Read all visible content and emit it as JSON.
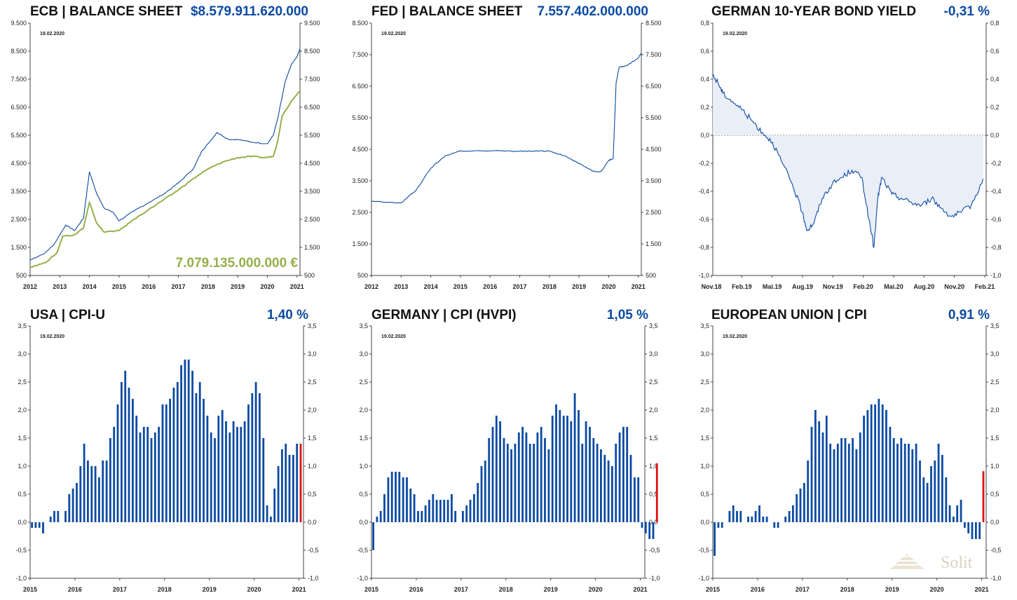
{
  "colors": {
    "blue": "#0b4aa2",
    "green": "#96b04a",
    "red": "#e01010",
    "fill": "#e9eef7"
  },
  "logo": {
    "text": "Solit"
  },
  "charts": [
    {
      "id": "ecb",
      "title": "ECB | BALANCE SHEET",
      "value": "$8.579.911.620.000",
      "date": "19.02.2020",
      "secondary_value": "7.079.135.000.000 €",
      "yticks": [
        "9.500",
        "8.500",
        "7.500",
        "6.500",
        "5.500",
        "4.500",
        "3.500",
        "2.500",
        "1.500",
        "500"
      ],
      "xticks": [
        "2012",
        "2013",
        "2014",
        "2015",
        "2016",
        "2017",
        "2018",
        "2019",
        "2020",
        "2021"
      ]
    },
    {
      "id": "fed",
      "title": "FED | BALANCE SHEET",
      "value": "7.557.402.000.000",
      "date": "19.02.2020",
      "yticks": [
        "8.500",
        "7.500",
        "6.500",
        "5.500",
        "4.500",
        "3.500",
        "2.500",
        "1.500",
        "500"
      ],
      "xticks": [
        "2012",
        "2013",
        "2014",
        "2015",
        "2016",
        "2017",
        "2018",
        "2019",
        "2020",
        "2021"
      ]
    },
    {
      "id": "bund",
      "title": "GERMAN 10-YEAR BOND YIELD",
      "value": "-0,31 %",
      "date": "19.02.2020",
      "yticks": [
        "0,8",
        "0,6",
        "0,4",
        "0,2",
        "0,0",
        "-0,2",
        "-0,4",
        "-0,6",
        "-0,8",
        "-1,0"
      ],
      "xticks": [
        "Nov.18",
        "Feb.19",
        "Mai.19",
        "Aug.19",
        "Nov.19",
        "Feb.20",
        "Mai.20",
        "Aug.20",
        "Nov.20",
        "Feb.21"
      ]
    },
    {
      "id": "uscpi",
      "title": "USA | CPI-U",
      "value": "1,40 %",
      "date": "19.02.2020",
      "yticks": [
        "3,5",
        "3,0",
        "2,5",
        "2,0",
        "1,5",
        "1,0",
        "0,5",
        "0,0",
        "-0,5",
        "-1,0"
      ],
      "xticks": [
        "2015",
        "2016",
        "2017",
        "2018",
        "2019",
        "2020",
        "2021"
      ]
    },
    {
      "id": "decpi",
      "title": "GERMANY | CPI (HVPI)",
      "value": "1,05 %",
      "date": "19.02.2020",
      "yticks": [
        "3,5",
        "3,0",
        "2,5",
        "2,0",
        "1,5",
        "1,0",
        "0,5",
        "0,0",
        "-0,5",
        "-1,0"
      ],
      "xticks": [
        "2015",
        "2016",
        "2017",
        "2018",
        "2019",
        "2020",
        "2021"
      ]
    },
    {
      "id": "eucpi",
      "title": "EUROPEAN UNION | CPI",
      "value": "0,91 %",
      "date": "19.02.2020",
      "yticks": [
        "3,5",
        "3,0",
        "2,5",
        "2,0",
        "1,5",
        "1,0",
        "0,5",
        "0,0",
        "-0,5",
        "-1,0"
      ],
      "xticks": [
        "2015",
        "2016",
        "2017",
        "2018",
        "2019",
        "2020",
        "2021"
      ]
    }
  ],
  "chart_data": [
    {
      "type": "line",
      "id": "ecb",
      "ylim": [
        500,
        9500
      ],
      "xlim": [
        2012,
        2021.1
      ],
      "series": [
        {
          "color": "blue",
          "points": [
            [
              2012,
              1050
            ],
            [
              2012.5,
              1300
            ],
            [
              2012.8,
              1600
            ],
            [
              2013.2,
              2300
            ],
            [
              2013.5,
              2100
            ],
            [
              2013.8,
              2550
            ],
            [
              2014.0,
              4200
            ],
            [
              2014.25,
              3400
            ],
            [
              2014.5,
              2900
            ],
            [
              2014.8,
              2750
            ],
            [
              2015.0,
              2450
            ],
            [
              2015.5,
              2800
            ],
            [
              2016.0,
              3100
            ],
            [
              2016.5,
              3400
            ],
            [
              2017.0,
              3800
            ],
            [
              2017.5,
              4300
            ],
            [
              2017.8,
              4950
            ],
            [
              2018.0,
              5200
            ],
            [
              2018.3,
              5600
            ],
            [
              2018.7,
              5350
            ],
            [
              2019.0,
              5350
            ],
            [
              2019.5,
              5250
            ],
            [
              2020.0,
              5200
            ],
            [
              2020.2,
              5500
            ],
            [
              2020.35,
              6100
            ],
            [
              2020.6,
              7400
            ],
            [
              2020.8,
              8000
            ],
            [
              2021.0,
              8300
            ],
            [
              2021.1,
              8580
            ]
          ]
        },
        {
          "color": "green",
          "points": [
            [
              2012,
              800
            ],
            [
              2012.5,
              950
            ],
            [
              2012.9,
              1300
            ],
            [
              2013.1,
              1900
            ],
            [
              2013.5,
              1950
            ],
            [
              2013.8,
              2200
            ],
            [
              2014.0,
              3100
            ],
            [
              2014.25,
              2350
            ],
            [
              2014.5,
              2050
            ],
            [
              2015.0,
              2100
            ],
            [
              2015.5,
              2500
            ],
            [
              2016.0,
              2850
            ],
            [
              2016.5,
              3200
            ],
            [
              2017.0,
              3550
            ],
            [
              2017.5,
              3950
            ],
            [
              2018.0,
              4300
            ],
            [
              2018.5,
              4550
            ],
            [
              2019.0,
              4700
            ],
            [
              2019.5,
              4750
            ],
            [
              2019.9,
              4700
            ],
            [
              2020.2,
              4750
            ],
            [
              2020.35,
              5300
            ],
            [
              2020.5,
              6200
            ],
            [
              2020.8,
              6700
            ],
            [
              2021.1,
              7080
            ]
          ]
        }
      ]
    },
    {
      "type": "line",
      "id": "fed",
      "ylim": [
        500,
        8500
      ],
      "xlim": [
        2012,
        2021.1
      ],
      "series": [
        {
          "color": "blue",
          "points": [
            [
              2012,
              2850
            ],
            [
              2012.5,
              2820
            ],
            [
              2013.0,
              2800
            ],
            [
              2013.5,
              3200
            ],
            [
              2014.0,
              3900
            ],
            [
              2014.5,
              4300
            ],
            [
              2015.0,
              4450
            ],
            [
              2016.0,
              4450
            ],
            [
              2017.0,
              4440
            ],
            [
              2017.5,
              4440
            ],
            [
              2018.0,
              4450
            ],
            [
              2018.5,
              4300
            ],
            [
              2019.0,
              4050
            ],
            [
              2019.5,
              3800
            ],
            [
              2019.75,
              3800
            ],
            [
              2020.0,
              4150
            ],
            [
              2020.15,
              4200
            ],
            [
              2020.25,
              6600
            ],
            [
              2020.35,
              7100
            ],
            [
              2020.6,
              7150
            ],
            [
              2021.0,
              7400
            ],
            [
              2021.1,
              7560
            ]
          ]
        }
      ]
    },
    {
      "type": "area",
      "id": "bund",
      "ylim": [
        -1.0,
        0.8
      ],
      "xlim": [
        0,
        27.5
      ],
      "series": [
        {
          "color": "blue",
          "points": [
            [
              0,
              0.42
            ],
            [
              0.5,
              0.38
            ],
            [
              1,
              0.3
            ],
            [
              2,
              0.24
            ],
            [
              3,
              0.18
            ],
            [
              4,
              0.1
            ],
            [
              5,
              0.02
            ],
            [
              6,
              -0.05
            ],
            [
              7,
              -0.2
            ],
            [
              8,
              -0.35
            ],
            [
              9,
              -0.55
            ],
            [
              9.5,
              -0.68
            ],
            [
              10.2,
              -0.62
            ],
            [
              11,
              -0.45
            ],
            [
              12,
              -0.35
            ],
            [
              13,
              -0.3
            ],
            [
              14,
              -0.25
            ],
            [
              15,
              -0.3
            ],
            [
              15.7,
              -0.6
            ],
            [
              16.2,
              -0.8
            ],
            [
              16.6,
              -0.45
            ],
            [
              17,
              -0.3
            ],
            [
              18,
              -0.42
            ],
            [
              19,
              -0.45
            ],
            [
              20,
              -0.48
            ],
            [
              21,
              -0.5
            ],
            [
              22,
              -0.45
            ],
            [
              23,
              -0.52
            ],
            [
              24,
              -0.58
            ],
            [
              25,
              -0.55
            ],
            [
              26,
              -0.5
            ],
            [
              27.2,
              -0.31
            ]
          ]
        }
      ]
    },
    {
      "type": "bar",
      "id": "uscpi",
      "ylim": [
        -1.0,
        3.5
      ],
      "xlim": [
        2015,
        2021.1
      ],
      "start": 2015.0,
      "step": 0.0833,
      "values": [
        -0.1,
        -0.1,
        -0.1,
        -0.2,
        0.0,
        0.1,
        0.2,
        0.2,
        0.0,
        0.2,
        0.5,
        0.6,
        0.7,
        1.0,
        1.4,
        1.1,
        1.0,
        1.0,
        0.8,
        1.1,
        1.1,
        1.5,
        1.7,
        2.1,
        2.5,
        2.7,
        2.4,
        2.2,
        1.9,
        1.6,
        1.7,
        1.7,
        1.5,
        1.6,
        1.7,
        2.1,
        2.1,
        2.2,
        2.4,
        2.5,
        2.8,
        2.9,
        2.9,
        2.7,
        2.3,
        2.5,
        2.2,
        1.9,
        1.6,
        1.5,
        1.9,
        2.0,
        1.8,
        1.6,
        1.8,
        1.7,
        1.7,
        1.8,
        2.1,
        2.3,
        2.5,
        2.3,
        1.5,
        0.3,
        0.1,
        0.6,
        1.0,
        1.3,
        1.4,
        1.2,
        1.2,
        1.4,
        1.4
      ],
      "last_color": "red"
    },
    {
      "type": "bar",
      "id": "decpi",
      "ylim": [
        -1.0,
        3.5
      ],
      "xlim": [
        2015,
        2021.1
      ],
      "start": 2015.0,
      "step": 0.0833,
      "values": [
        -0.5,
        0.1,
        0.2,
        0.5,
        0.8,
        0.9,
        0.9,
        0.9,
        0.8,
        0.8,
        0.6,
        0.5,
        0.2,
        0.2,
        0.3,
        0.4,
        0.5,
        0.4,
        0.4,
        0.4,
        0.4,
        0.5,
        0.2,
        0.0,
        0.2,
        0.3,
        0.4,
        0.5,
        0.7,
        1.0,
        1.1,
        1.5,
        1.7,
        1.9,
        1.8,
        1.5,
        1.4,
        1.3,
        1.4,
        1.6,
        1.7,
        1.6,
        1.4,
        1.4,
        1.6,
        1.7,
        1.5,
        1.3,
        1.9,
        2.1,
        2.0,
        1.9,
        1.9,
        1.8,
        2.3,
        2.0,
        1.4,
        1.8,
        1.7,
        1.5,
        1.4,
        1.3,
        1.2,
        1.1,
        1.0,
        1.4,
        1.6,
        1.7,
        1.7,
        1.2,
        0.8,
        0.8,
        -0.1,
        -0.2,
        -0.3,
        -0.3,
        1.05
      ],
      "last_color": "red"
    },
    {
      "type": "bar",
      "id": "eucpi",
      "ylim": [
        -1.0,
        3.5
      ],
      "xlim": [
        2015,
        2021.1
      ],
      "start": 2015.0,
      "step": 0.0833,
      "values": [
        -0.6,
        -0.1,
        -0.1,
        0.0,
        0.2,
        0.3,
        0.2,
        0.2,
        0.0,
        0.1,
        0.1,
        0.2,
        0.3,
        0.1,
        0.1,
        0.0,
        -0.1,
        -0.1,
        0.0,
        0.1,
        0.2,
        0.3,
        0.5,
        0.6,
        0.7,
        1.1,
        1.7,
        2.0,
        1.8,
        1.6,
        1.9,
        1.4,
        1.3,
        1.4,
        1.5,
        1.5,
        1.4,
        1.5,
        1.3,
        1.6,
        1.9,
        2.0,
        2.1,
        2.1,
        2.2,
        2.1,
        2.0,
        1.7,
        1.5,
        1.4,
        1.5,
        1.4,
        1.4,
        1.3,
        1.4,
        1.1,
        0.8,
        0.7,
        1.0,
        1.1,
        1.4,
        1.2,
        0.8,
        0.3,
        0.1,
        0.3,
        0.4,
        -0.1,
        -0.2,
        -0.3,
        -0.3,
        -0.3,
        0.91
      ],
      "last_color": "red"
    }
  ]
}
